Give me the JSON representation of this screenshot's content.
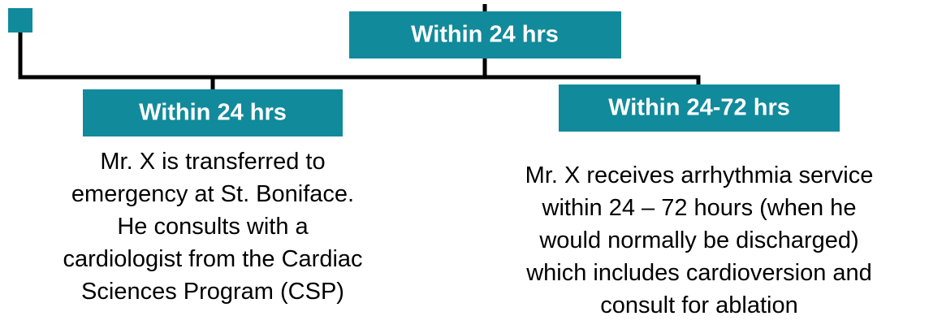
{
  "top": {
    "label": "Within 24 hrs"
  },
  "branches": [
    {
      "label": "Within 24 hrs",
      "lines": [
        "Mr. X is transferred to",
        "emergency at St. Boniface.",
        "He consults with a",
        "cardiologist from the Cardiac",
        "Sciences Program (CSP)"
      ]
    },
    {
      "label": "Within 24-72 hrs",
      "lines": [
        "Mr. X receives arrhythmia service",
        "within 24 – 72 hours (when he",
        "would normally be discharged)",
        "which includes cardioversion and",
        "consult for ablation"
      ]
    }
  ]
}
